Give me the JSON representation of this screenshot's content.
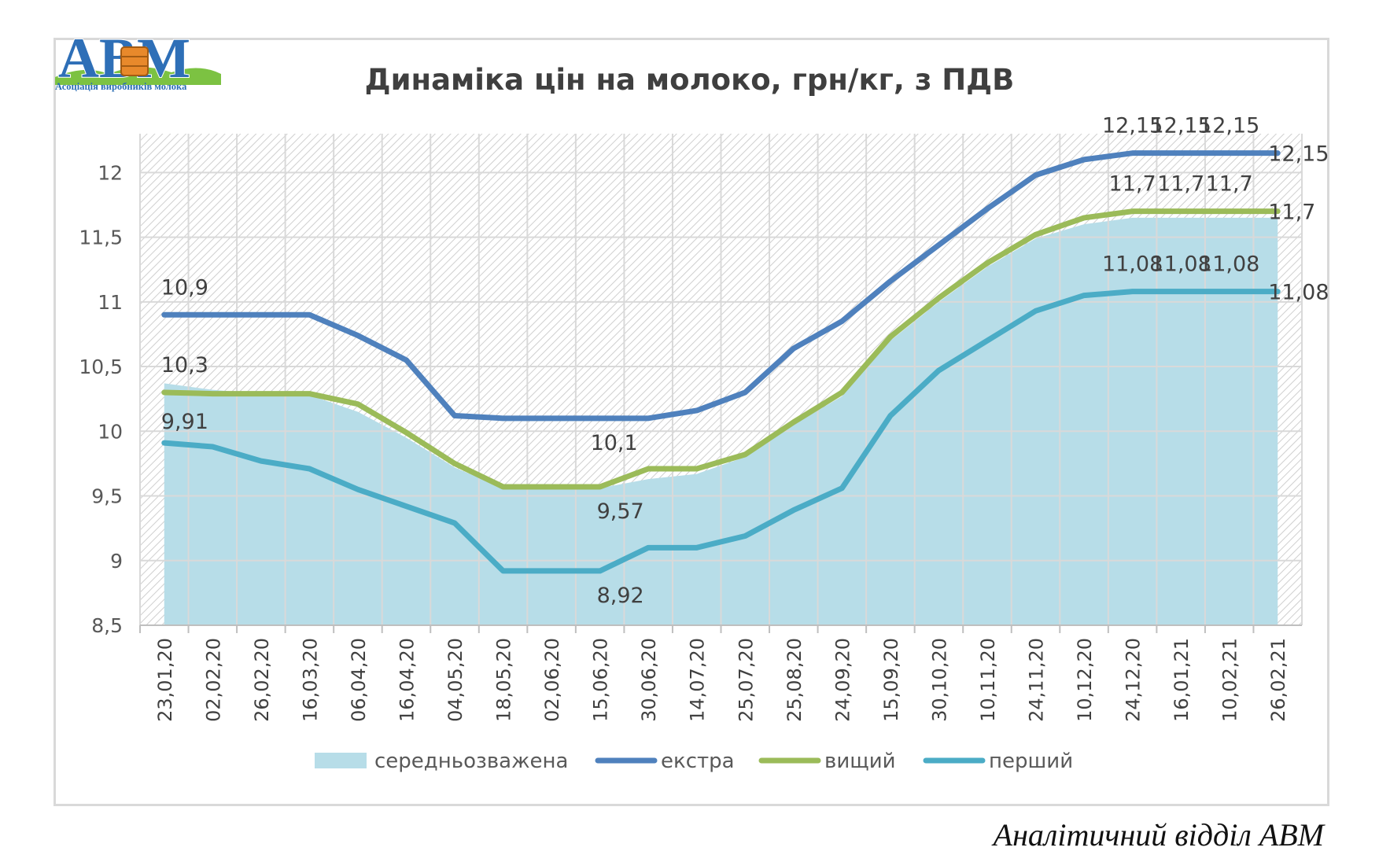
{
  "logo": {
    "text": "АВМ",
    "subtitle": "Асоціація виробників молока"
  },
  "footer": "Аналітичний відділ АВМ",
  "chart_data": {
    "type": "line",
    "title": "Динаміка цін на молоко, грн/кг, з ПДВ",
    "xlabel": "",
    "ylabel": "",
    "ylim": [
      8.5,
      12.3
    ],
    "yticks": [
      "8,5",
      "9",
      "9,5",
      "10",
      "10,5",
      "11",
      "11,5",
      "12"
    ],
    "grid": true,
    "legend_position": "bottom",
    "categories": [
      "23,01,20",
      "02,02,20",
      "26,02,20",
      "16,03,20",
      "06,04,20",
      "16,04,20",
      "04,05,20",
      "18,05,20",
      "02,06,20",
      "15,06,20",
      "30,06,20",
      "14,07,20",
      "25,07,20",
      "25,08,20",
      "24,09,20",
      "15,09,20",
      "30,10,20",
      "10,11,20",
      "24,11,20",
      "10,12,20",
      "24,12,20",
      "16,01,21",
      "10,02,21",
      "26,02,21"
    ],
    "series": [
      {
        "name": "середньозважена",
        "kind": "area",
        "color": "#b7dde8",
        "values": [
          10.37,
          10.32,
          10.29,
          10.28,
          10.15,
          9.95,
          9.72,
          9.56,
          9.56,
          9.56,
          9.63,
          9.67,
          9.8,
          10.05,
          10.27,
          10.7,
          11.0,
          11.27,
          11.49,
          11.6,
          11.65,
          11.65,
          11.65,
          11.65
        ]
      },
      {
        "name": "екстра",
        "kind": "line",
        "color": "#4f81bd",
        "values": [
          10.9,
          10.9,
          10.9,
          10.9,
          10.74,
          10.55,
          10.12,
          10.1,
          10.1,
          10.1,
          10.1,
          10.16,
          10.3,
          10.64,
          10.85,
          11.16,
          11.44,
          11.72,
          11.98,
          12.1,
          12.15,
          12.15,
          12.15,
          12.15
        ]
      },
      {
        "name": "вищий",
        "kind": "line",
        "color": "#9bbb59",
        "values": [
          10.3,
          10.29,
          10.29,
          10.29,
          10.21,
          9.99,
          9.75,
          9.57,
          9.57,
          9.57,
          9.71,
          9.71,
          9.82,
          10.07,
          10.3,
          10.73,
          11.03,
          11.3,
          11.52,
          11.65,
          11.7,
          11.7,
          11.7,
          11.7
        ]
      },
      {
        "name": "перший",
        "kind": "line",
        "color": "#4bacc6",
        "values": [
          9.91,
          9.88,
          9.77,
          9.71,
          9.55,
          9.42,
          9.29,
          8.92,
          8.92,
          8.92,
          9.1,
          9.1,
          9.19,
          9.39,
          9.56,
          10.12,
          10.47,
          10.7,
          10.93,
          11.05,
          11.08,
          11.08,
          11.08,
          11.08
        ]
      }
    ],
    "data_labels": [
      {
        "series": "екстра",
        "index": 0,
        "text": "10,9"
      },
      {
        "series": "екстра",
        "index": 9,
        "text": "10,1"
      },
      {
        "series": "екстра",
        "index": 20,
        "text": "12,15"
      },
      {
        "series": "екстра",
        "index": 21,
        "text": "12,15"
      },
      {
        "series": "екстра",
        "index": 22,
        "text": "12,15"
      },
      {
        "series": "екстра",
        "index": 23,
        "text": "12,15"
      },
      {
        "series": "вищий",
        "index": 0,
        "text": "10,3"
      },
      {
        "series": "вищий",
        "index": 9,
        "text": "9,57"
      },
      {
        "series": "вищий",
        "index": 20,
        "text": "11,7"
      },
      {
        "series": "вищий",
        "index": 21,
        "text": "11,7"
      },
      {
        "series": "вищий",
        "index": 22,
        "text": "11,7"
      },
      {
        "series": "вищий",
        "index": 23,
        "text": "11,7"
      },
      {
        "series": "перший",
        "index": 0,
        "text": "9,91"
      },
      {
        "series": "перший",
        "index": 9,
        "text": "8,92"
      },
      {
        "series": "перший",
        "index": 20,
        "text": "11,08"
      },
      {
        "series": "перший",
        "index": 21,
        "text": "11,08"
      },
      {
        "series": "перший",
        "index": 22,
        "text": "11,08"
      },
      {
        "series": "перший",
        "index": 23,
        "text": "11,08"
      }
    ]
  }
}
